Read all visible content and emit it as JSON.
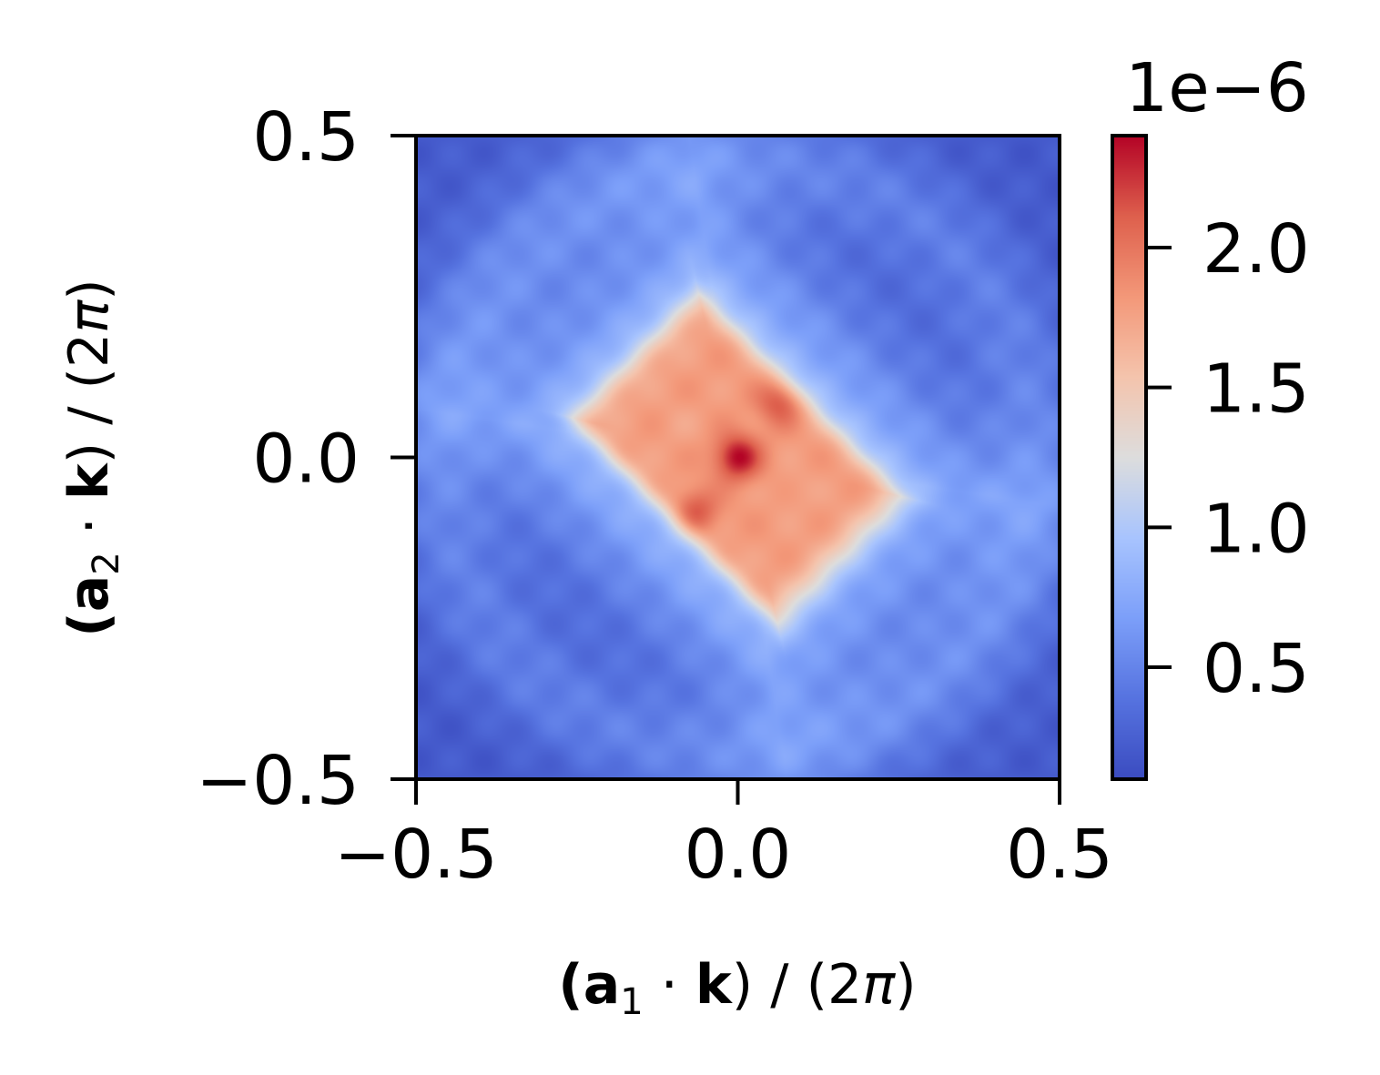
{
  "chart_data": {
    "type": "heatmap",
    "title": "",
    "xlabel": {
      "open": "(",
      "vec": "a",
      "sub": "1",
      "dot": " · ",
      "k": "k",
      "close": ")",
      "div": " / (2",
      "pi": "π",
      "end": ")"
    },
    "ylabel": {
      "open": "(",
      "vec": "a",
      "sub": "2",
      "dot": " · ",
      "k": "k",
      "close": ")",
      "div": " / (2",
      "pi": "π",
      "end": ")"
    },
    "xlim": [
      -0.5,
      0.5
    ],
    "ylim": [
      -0.5,
      0.5
    ],
    "xticks": [
      {
        "value": -0.5,
        "label": "−0.5"
      },
      {
        "value": 0.0,
        "label": "0.0"
      },
      {
        "value": 0.5,
        "label": "0.5"
      }
    ],
    "yticks": [
      {
        "value": -0.5,
        "label": "−0.5"
      },
      {
        "value": 0.0,
        "label": "0.0"
      },
      {
        "value": 0.5,
        "label": "0.5"
      }
    ],
    "colormap": "coolwarm",
    "colorbar": {
      "scale_label": "1e−6",
      "range": [
        0.1,
        2.4
      ],
      "ticks": [
        {
          "value": 0.5,
          "label": "0.5"
        },
        {
          "value": 1.0,
          "label": "1.0"
        },
        {
          "value": 1.5,
          "label": "1.5"
        },
        {
          "value": 2.0,
          "label": "2.0"
        }
      ]
    },
    "field_description_values": {
      "center_value": 2.4,
      "peak_ring_value": 1.8,
      "plateau_value": 1.15,
      "background_value": 0.2,
      "units_multiplier": 1e-06
    }
  }
}
